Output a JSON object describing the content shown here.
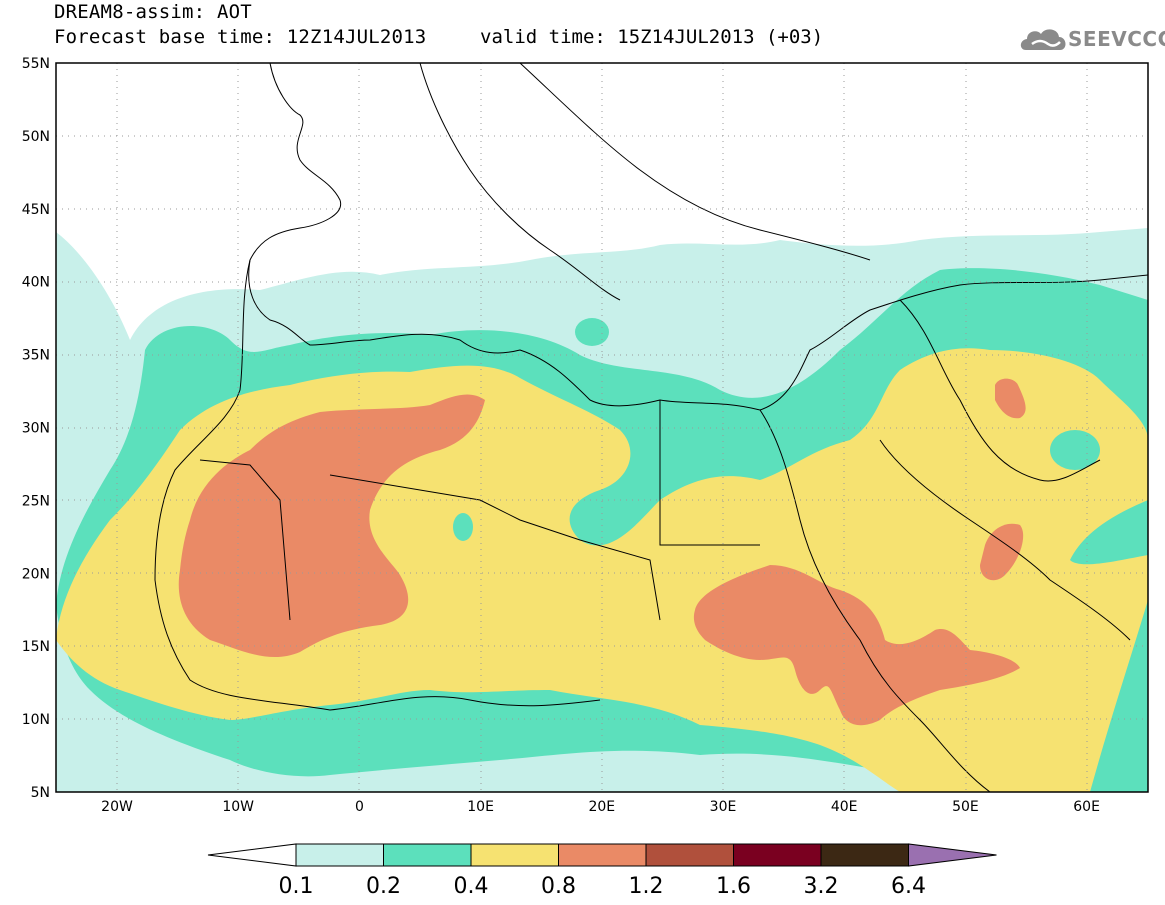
{
  "title": {
    "line1": "DREAM8-assim: AOT",
    "line2": "Forecast base time: 12Z14JUL2013",
    "valid": "valid time: 15Z14JUL2013 (+03)"
  },
  "logo": {
    "text": "SEEVCCC",
    "icon": "cloud-icon"
  },
  "axes": {
    "lat_ticks": [
      "55N",
      "50N",
      "45N",
      "40N",
      "35N",
      "30N",
      "25N",
      "20N",
      "15N",
      "10N",
      "5N"
    ],
    "lon_ticks": [
      "20W",
      "10W",
      "0",
      "10E",
      "20E",
      "30E",
      "40E",
      "50E",
      "60E"
    ]
  },
  "colorbar": {
    "labels": [
      "0.1",
      "0.2",
      "0.4",
      "0.8",
      "1.2",
      "1.6",
      "3.2",
      "6.4"
    ],
    "colors": [
      "#ffffff",
      "#c8f0ea",
      "#5ce0bc",
      "#f6e271",
      "#ea8a66",
      "#b0503c",
      "#7a0020",
      "#3c2814",
      "#9a70b0"
    ]
  },
  "map": {
    "colors": {
      "c01": "#c8f0ea",
      "c02": "#5ce0bc",
      "c04": "#f6e271",
      "c08": "#ea8a66"
    }
  }
}
